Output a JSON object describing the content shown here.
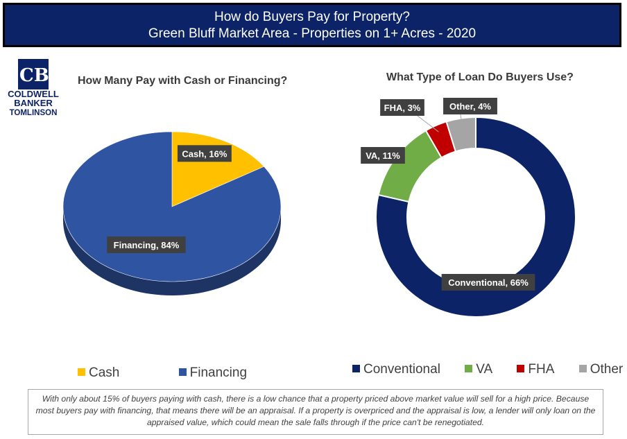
{
  "header": {
    "title_line1": "How do Buyers Pay for Property?",
    "title_line2": "Green Bluff Market Area - Properties on 1+ Acres - 2020",
    "background": "#0c2467"
  },
  "logo": {
    "monogram": "CB",
    "line1": "COLDWELL",
    "line2": "BANKER",
    "line3": "TOMLINSON"
  },
  "chart_data": [
    {
      "type": "pie",
      "title": "How Many Pay with Cash or Financing?",
      "categories": [
        "Cash",
        "Financing"
      ],
      "values": [
        16,
        84
      ],
      "labels": [
        "Cash, 16%",
        "Financing, 84%"
      ],
      "colors": [
        "#ffc000",
        "#2e54a2"
      ],
      "legend": [
        "Cash",
        "Financing"
      ],
      "legend_position": "bottom"
    },
    {
      "type": "pie",
      "style": "donut",
      "title": "What Type of Loan Do Buyers Use?",
      "categories": [
        "Conventional",
        "VA",
        "FHA",
        "Other"
      ],
      "values": [
        66,
        11,
        3,
        4
      ],
      "labels": [
        "Conventional, 66%",
        "VA, 11%",
        "FHA, 3%",
        "Other, 4%"
      ],
      "colors": [
        "#0c2467",
        "#70ad47",
        "#c00000",
        "#a5a5a5"
      ],
      "legend": [
        "Conventional",
        "VA",
        "FHA",
        "Other"
      ],
      "legend_position": "bottom"
    }
  ],
  "note": "With only about 15% of buyers paying with cash, there is a low chance that a property priced above market value will sell for a high price. Because most buyers pay with financing, that means there will be an appraisal. If a property is overpriced and the appraisal is low, a lender will only loan on the appraised value, which could mean the sale falls through if the price can't be renegotiated."
}
